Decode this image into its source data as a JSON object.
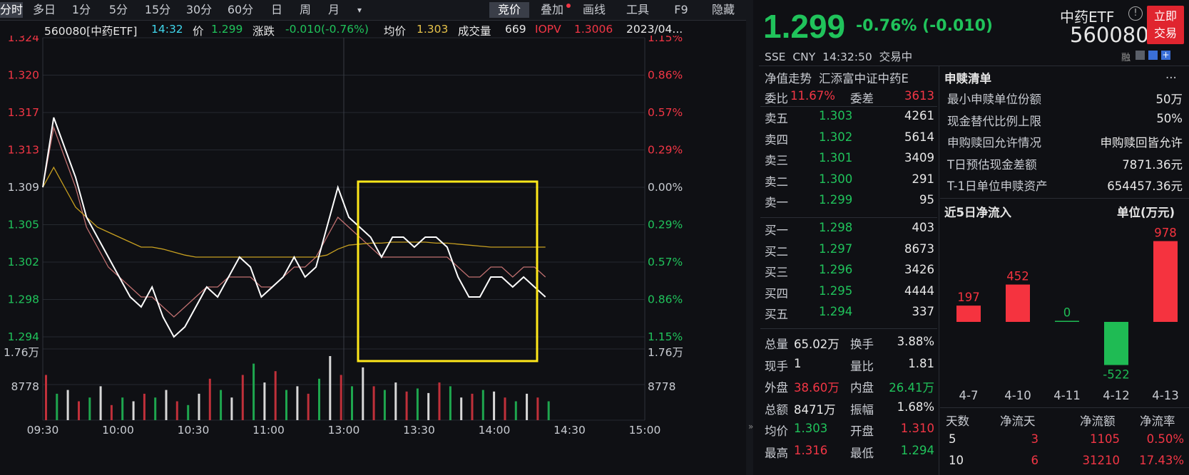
{
  "toolbar": {
    "periods": [
      "分时",
      "多日",
      "1分",
      "5分",
      "15分",
      "30分",
      "60分",
      "日",
      "周",
      "月",
      "▾"
    ],
    "tools": [
      "竞价",
      "叠加",
      "画线",
      "工具",
      "F9",
      "隐藏"
    ]
  },
  "infobar": {
    "code": "560080[中药ETF]",
    "time": "14:32",
    "price_label": "价",
    "price": "1.299",
    "change_label": "涨跌",
    "change": "-0.010(-0.76%)",
    "avg_label": "均价",
    "avg": "1.303",
    "vol_label": "成交量",
    "vol": "669",
    "iopv_label": "IOPV",
    "iopv": "1.3006",
    "date": "2023/04..."
  },
  "chart_axes": {
    "price_ticks": [
      "1.324",
      "1.320",
      "1.317",
      "1.313",
      "1.309",
      "1.305",
      "1.302",
      "1.298",
      "1.294"
    ],
    "pct_ticks": [
      "1.15%",
      "0.86%",
      "0.57%",
      "0.29%",
      "0.00%",
      "0.29%",
      "0.57%",
      "0.86%",
      "1.15%"
    ],
    "vol_ticks": [
      "1.76万",
      "8778"
    ],
    "time_ticks": [
      "09:30",
      "10:00",
      "10:30",
      "11:00",
      "13:00",
      "13:30",
      "14:00",
      "14:30",
      "15:00"
    ]
  },
  "chart_data": {
    "type": "line",
    "title": "",
    "series": [
      {
        "name": "价",
        "color": "#ffffff",
        "values": [
          1.309,
          1.316,
          1.313,
          1.31,
          1.306,
          1.304,
          1.302,
          1.3,
          1.298,
          1.297,
          1.299,
          1.296,
          1.294,
          1.295,
          1.297,
          1.299,
          1.298,
          1.3,
          1.302,
          1.301,
          1.298,
          1.299,
          1.3,
          1.302,
          1.3,
          1.301,
          1.305,
          1.309,
          1.306,
          1.305,
          1.304,
          1.302,
          1.304,
          1.304,
          1.303,
          1.304,
          1.304,
          1.303,
          1.3,
          1.298,
          1.298,
          1.3,
          1.3,
          1.299,
          1.3,
          1.299,
          1.298
        ]
      },
      {
        "name": "均价",
        "color": "#c8a020",
        "values": [
          1.309,
          1.311,
          1.309,
          1.307,
          1.306,
          1.305,
          1.3045,
          1.304,
          1.3035,
          1.303,
          1.303,
          1.3028,
          1.3025,
          1.3022,
          1.302,
          1.302,
          1.302,
          1.302,
          1.302,
          1.302,
          1.302,
          1.302,
          1.302,
          1.302,
          1.302,
          1.302,
          1.3022,
          1.3028,
          1.3032,
          1.3033,
          1.3034,
          1.3034,
          1.3035,
          1.3035,
          1.3035,
          1.3035,
          1.3034,
          1.3034,
          1.3033,
          1.3032,
          1.3031,
          1.303,
          1.303,
          1.303,
          1.303,
          1.303,
          1.303
        ]
      },
      {
        "name": "IOPV",
        "color": "#c07070",
        "values": [
          1.309,
          1.315,
          1.312,
          1.309,
          1.305,
          1.303,
          1.301,
          1.3,
          1.299,
          1.298,
          1.298,
          1.297,
          1.296,
          1.297,
          1.298,
          1.299,
          1.299,
          1.3,
          1.3,
          1.3,
          1.299,
          1.299,
          1.3,
          1.301,
          1.301,
          1.302,
          1.304,
          1.306,
          1.305,
          1.304,
          1.303,
          1.302,
          1.302,
          1.302,
          1.302,
          1.302,
          1.302,
          1.302,
          1.301,
          1.3,
          1.3,
          1.301,
          1.301,
          1.3,
          1.301,
          1.301,
          1.3
        ]
      }
    ],
    "ylim": [
      1.294,
      1.324
    ],
    "volume": [
      60,
      35,
      40,
      25,
      30,
      45,
      20,
      30,
      25,
      35,
      30,
      40,
      25,
      20,
      35,
      55,
      40,
      30,
      60,
      75,
      50,
      65,
      40,
      45,
      35,
      55,
      85,
      60,
      45,
      70,
      45,
      40,
      50,
      38,
      42,
      36,
      50,
      45,
      30,
      35,
      40,
      38,
      30,
      25,
      35,
      30,
      25
    ],
    "highlight_box": "13:00-14:00"
  },
  "quote": {
    "price": "1.299",
    "change": "-0.76% (-0.010)",
    "name": "中药ETF",
    "code": "560080",
    "exchange": "SSE",
    "currency": "CNY",
    "time": "14:32:50",
    "status": "交易中",
    "trade_btn_l1": "立即",
    "trade_btn_l2": "交易",
    "mini_icons": "融"
  },
  "orderbook": {
    "nav_label": "净值走势",
    "fund_name": "汇添富中证中药E",
    "weibi_label": "委比",
    "weibi": "11.67%",
    "weicha_label": "委差",
    "weicha": "3613",
    "asks": [
      {
        "label": "卖五",
        "price": "1.303",
        "vol": "4261"
      },
      {
        "label": "卖四",
        "price": "1.302",
        "vol": "5614"
      },
      {
        "label": "卖三",
        "price": "1.301",
        "vol": "3409"
      },
      {
        "label": "卖二",
        "price": "1.300",
        "vol": "291"
      },
      {
        "label": "卖一",
        "price": "1.299",
        "vol": "95"
      }
    ],
    "bids": [
      {
        "label": "买一",
        "price": "1.298",
        "vol": "403"
      },
      {
        "label": "买二",
        "price": "1.297",
        "vol": "8673"
      },
      {
        "label": "买三",
        "price": "1.296",
        "vol": "3426"
      },
      {
        "label": "买四",
        "price": "1.295",
        "vol": "4444"
      },
      {
        "label": "买五",
        "price": "1.294",
        "vol": "337"
      }
    ],
    "stats": [
      {
        "l1": "总量",
        "v1": "65.02万",
        "c1": "white",
        "l2": "换手",
        "v2": "3.88%",
        "c2": "white"
      },
      {
        "l1": "现手",
        "v1": "1",
        "c1": "white",
        "l2": "量比",
        "v2": "1.81",
        "c2": "white"
      },
      {
        "l1": "外盘",
        "v1": "38.60万",
        "c1": "red",
        "l2": "内盘",
        "v2": "26.41万",
        "c2": "green"
      },
      {
        "l1": "总额",
        "v1": "8471万",
        "c1": "white",
        "l2": "振幅",
        "v2": "1.68%",
        "c2": "white"
      },
      {
        "l1": "均价",
        "v1": "1.303",
        "c1": "green",
        "l2": "开盘",
        "v2": "1.310",
        "c2": "red"
      },
      {
        "l1": "最高",
        "v1": "1.316",
        "c1": "red",
        "l2": "最低",
        "v2": "1.294",
        "c2": "green"
      }
    ]
  },
  "creation": {
    "title": "申赎清单",
    "more": "...",
    "rows": [
      {
        "label": "最小申赎单位份额",
        "value": "50万"
      },
      {
        "label": "现金替代比例上限",
        "value": "50%"
      },
      {
        "label": "申购赎回允许情况",
        "value": "申购赎回皆允许"
      },
      {
        "label": "T日预估现金差额",
        "value": "7871.36元"
      },
      {
        "label": "T-1日单位申赎资产",
        "value": "654457.36元"
      }
    ]
  },
  "netflow": {
    "title": "近5日净流入",
    "unit": "单位(万元)",
    "bars": [
      {
        "date": "4-7",
        "value": 197
      },
      {
        "date": "4-10",
        "value": 452
      },
      {
        "date": "4-11",
        "value": 0
      },
      {
        "date": "4-12",
        "value": -522
      },
      {
        "date": "4-13",
        "value": 978
      }
    ],
    "table_headers": [
      "天数",
      "净流天",
      "净流额",
      "净流率"
    ],
    "table_rows": [
      [
        "5",
        "3",
        "1105",
        "0.50%"
      ],
      [
        "10",
        "6",
        "31210",
        "17.43%"
      ]
    ]
  }
}
